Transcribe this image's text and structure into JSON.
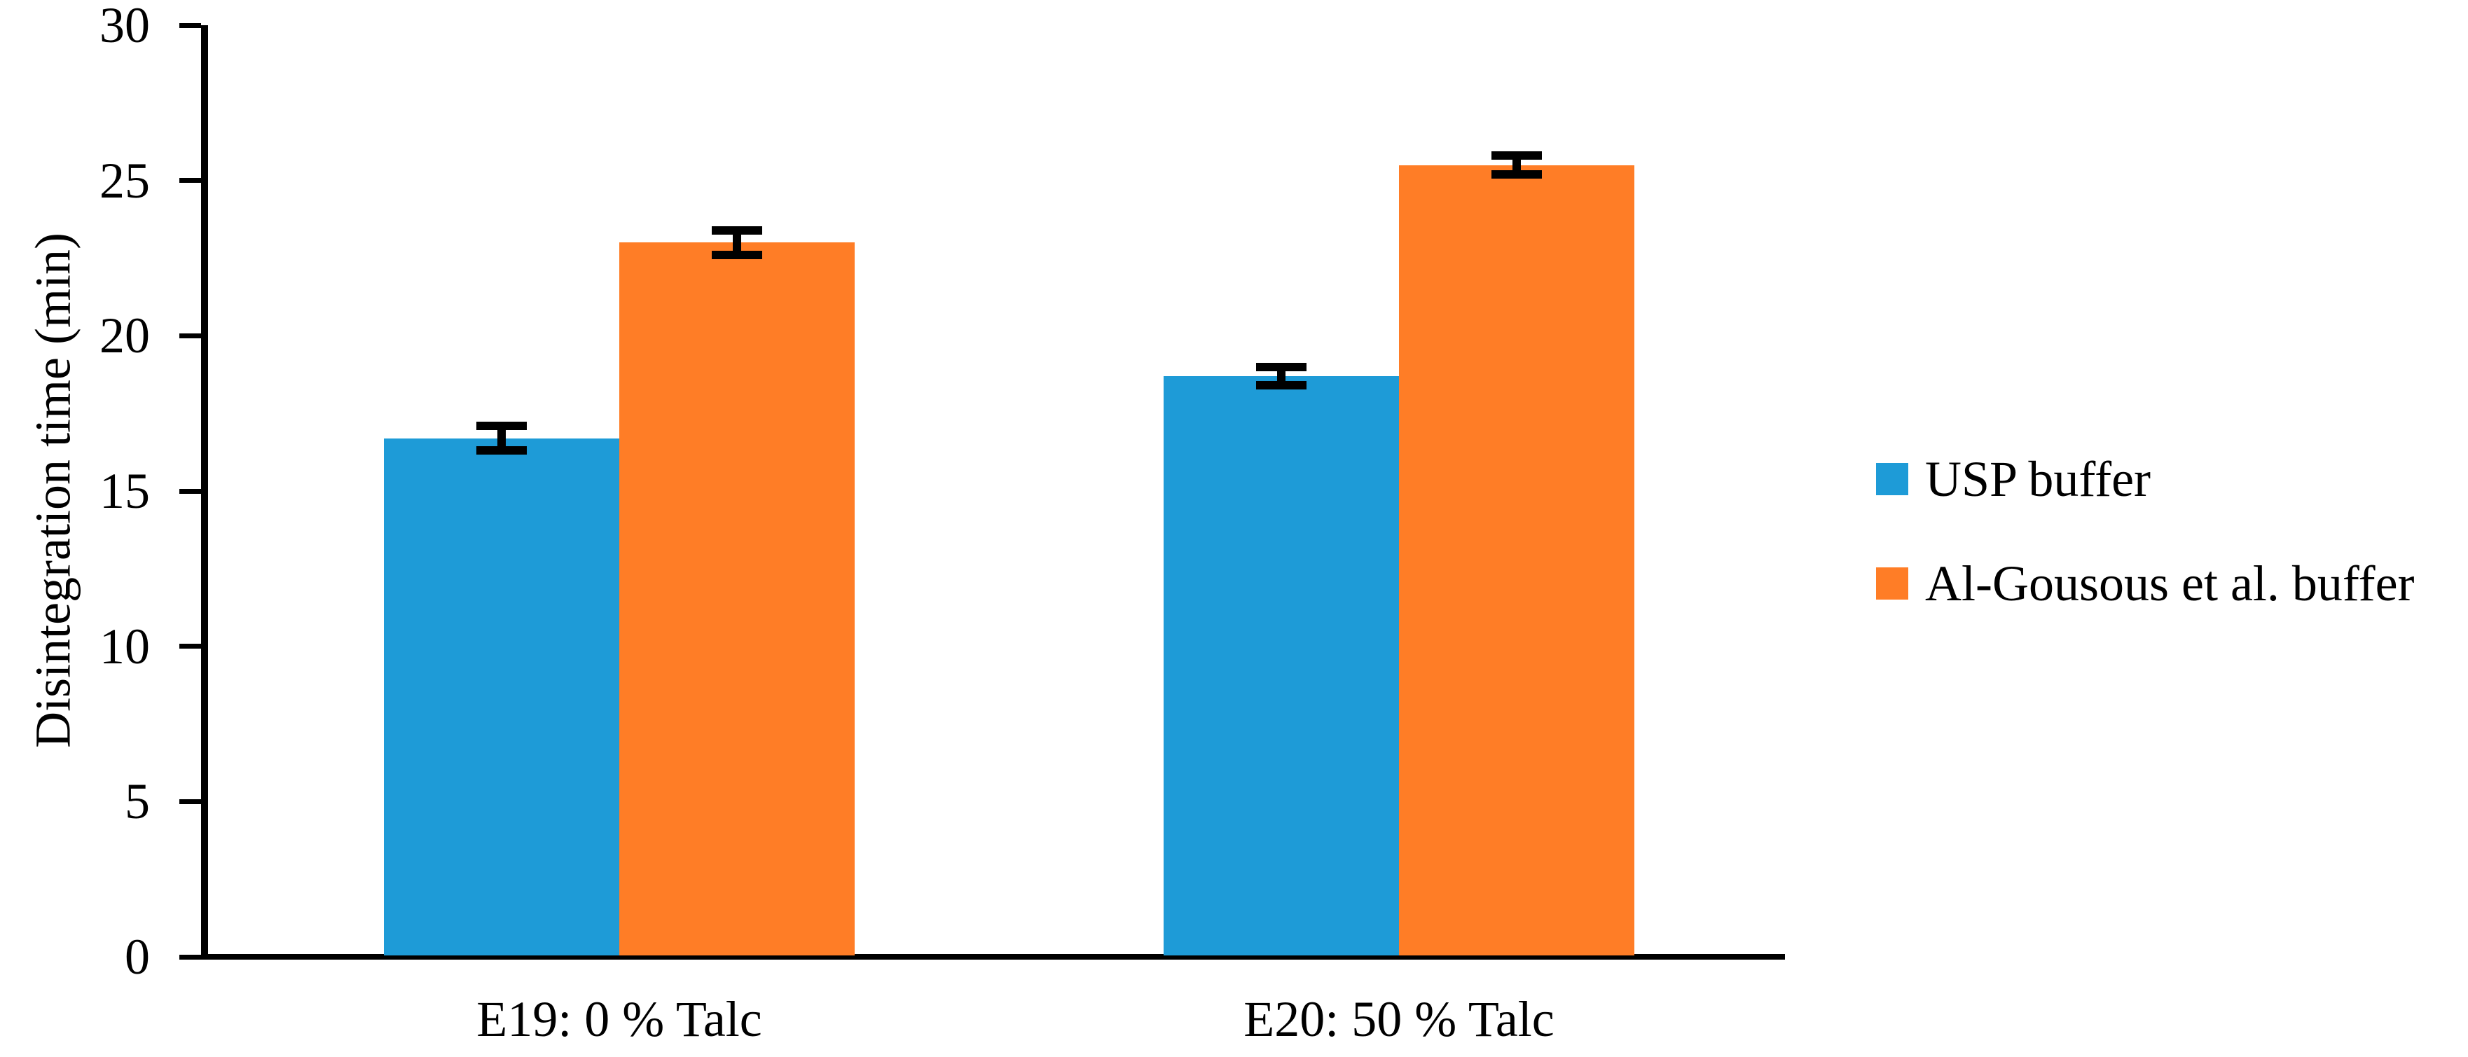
{
  "chart_data": {
    "type": "bar",
    "title": "",
    "xlabel": "",
    "ylabel": "Disintegration time (min)",
    "categories": [
      "E19: 0 % Talc",
      "E20: 50 % Talc"
    ],
    "series": [
      {
        "name": "USP buffer",
        "color": "#1E9BD7",
        "values": [
          16.7,
          18.7
        ],
        "errors": [
          0.4,
          0.3
        ]
      },
      {
        "name": "Al-Gousous et al. buffer",
        "color": "#FF7D26",
        "values": [
          23.0,
          25.5
        ],
        "errors": [
          0.4,
          0.3
        ]
      }
    ],
    "y_ticks": [
      0,
      5,
      10,
      15,
      20,
      25,
      30
    ],
    "ylim": [
      0,
      30
    ],
    "grid": false,
    "legend_position": "right",
    "axis_color": "#000000",
    "error_bar_color": "#000000"
  }
}
